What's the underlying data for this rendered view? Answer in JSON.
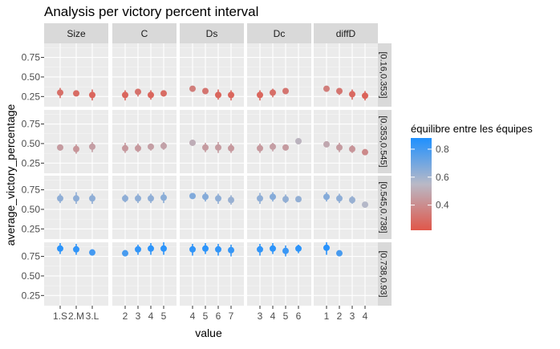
{
  "chart_data": {
    "type": "scatter",
    "title": "Analysis per victory percent interval",
    "xlabel": "value",
    "ylabel": "average_victory_percentage",
    "ylim": [
      0.12,
      0.93
    ],
    "y_ticks": [
      0.25,
      0.5,
      0.75
    ],
    "y_tick_labels": [
      "0.25",
      "0.50",
      "0.75"
    ],
    "grid": true,
    "columns": [
      {
        "label": "Size",
        "x": [
          "1.S",
          "2.M",
          "3.L"
        ]
      },
      {
        "label": "C",
        "x": [
          "2",
          "3",
          "4",
          "5"
        ]
      },
      {
        "label": "Ds",
        "x": [
          "4",
          "5",
          "6",
          "7"
        ]
      },
      {
        "label": "Dc",
        "x": [
          "3",
          "4",
          "5",
          "6"
        ]
      },
      {
        "label": "diffD",
        "x": [
          "1",
          "2",
          "3",
          "4"
        ]
      }
    ],
    "rows": [
      {
        "label": "[0.16,0.353]",
        "panels": [
          {
            "points": [
              {
                "x": "1.S",
                "y": 0.3,
                "lo": 0.23,
                "hi": 0.36
              },
              {
                "x": "2.M",
                "y": 0.29,
                "lo": 0.26,
                "hi": 0.32
              },
              {
                "x": "3.L",
                "y": 0.27,
                "lo": 0.2,
                "hi": 0.34
              }
            ]
          },
          {
            "points": [
              {
                "x": "2",
                "y": 0.27,
                "lo": 0.2,
                "hi": 0.33
              },
              {
                "x": "3",
                "y": 0.31,
                "lo": 0.25,
                "hi": 0.35
              },
              {
                "x": "4",
                "y": 0.27,
                "lo": 0.21,
                "hi": 0.33
              },
              {
                "x": "5",
                "y": 0.29,
                "lo": 0.25,
                "hi": 0.32
              }
            ]
          },
          {
            "points": [
              {
                "x": "4",
                "y": 0.35,
                "lo": 0.31,
                "hi": 0.38
              },
              {
                "x": "5",
                "y": 0.32,
                "lo": 0.28,
                "hi": 0.35
              },
              {
                "x": "6",
                "y": 0.27,
                "lo": 0.21,
                "hi": 0.34
              },
              {
                "x": "7",
                "y": 0.27,
                "lo": 0.2,
                "hi": 0.33
              }
            ]
          },
          {
            "points": [
              {
                "x": "3",
                "y": 0.27,
                "lo": 0.2,
                "hi": 0.33
              },
              {
                "x": "4",
                "y": 0.3,
                "lo": 0.24,
                "hi": 0.35
              },
              {
                "x": "5",
                "y": 0.32,
                "lo": 0.28,
                "hi": 0.35
              },
              {
                "x": "6",
                "y": null,
                "lo": null,
                "hi": null
              }
            ]
          },
          {
            "points": [
              {
                "x": "1",
                "y": 0.35,
                "lo": 0.32,
                "hi": 0.38
              },
              {
                "x": "2",
                "y": 0.32,
                "lo": 0.27,
                "hi": 0.35
              },
              {
                "x": "3",
                "y": 0.28,
                "lo": 0.21,
                "hi": 0.34
              },
              {
                "x": "4",
                "y": 0.26,
                "lo": 0.2,
                "hi": 0.32
              }
            ]
          }
        ]
      },
      {
        "label": "[0.353,0.545]",
        "panels": [
          {
            "points": [
              {
                "x": "1.S",
                "y": 0.45,
                "lo": 0.41,
                "hi": 0.49
              },
              {
                "x": "2.M",
                "y": 0.43,
                "lo": 0.37,
                "hi": 0.49
              },
              {
                "x": "3.L",
                "y": 0.46,
                "lo": 0.39,
                "hi": 0.52
              }
            ]
          },
          {
            "points": [
              {
                "x": "2",
                "y": 0.44,
                "lo": 0.38,
                "hi": 0.51
              },
              {
                "x": "3",
                "y": 0.44,
                "lo": 0.39,
                "hi": 0.5
              },
              {
                "x": "4",
                "y": 0.46,
                "lo": 0.41,
                "hi": 0.5
              },
              {
                "x": "5",
                "y": 0.47,
                "lo": 0.42,
                "hi": 0.52
              }
            ]
          },
          {
            "points": [
              {
                "x": "4",
                "y": 0.51,
                "lo": 0.48,
                "hi": 0.53
              },
              {
                "x": "5",
                "y": 0.45,
                "lo": 0.39,
                "hi": 0.51
              },
              {
                "x": "6",
                "y": 0.45,
                "lo": 0.38,
                "hi": 0.52
              },
              {
                "x": "7",
                "y": 0.44,
                "lo": 0.38,
                "hi": 0.5
              }
            ]
          },
          {
            "points": [
              {
                "x": "3",
                "y": 0.44,
                "lo": 0.38,
                "hi": 0.5
              },
              {
                "x": "4",
                "y": 0.46,
                "lo": 0.4,
                "hi": 0.51
              },
              {
                "x": "5",
                "y": 0.45,
                "lo": 0.42,
                "hi": 0.48
              },
              {
                "x": "6",
                "y": 0.53,
                "lo": 0.51,
                "hi": 0.55
              }
            ]
          },
          {
            "points": [
              {
                "x": "1",
                "y": 0.49,
                "lo": 0.46,
                "hi": 0.52
              },
              {
                "x": "2",
                "y": 0.45,
                "lo": 0.39,
                "hi": 0.51
              },
              {
                "x": "3",
                "y": 0.43,
                "lo": 0.38,
                "hi": 0.48
              },
              {
                "x": "4",
                "y": 0.39,
                "lo": 0.37,
                "hi": 0.42
              }
            ]
          }
        ]
      },
      {
        "label": "[0.545,0.738]",
        "panels": [
          {
            "points": [
              {
                "x": "1.S",
                "y": 0.64,
                "lo": 0.58,
                "hi": 0.7
              },
              {
                "x": "2.M",
                "y": 0.64,
                "lo": 0.57,
                "hi": 0.72
              },
              {
                "x": "3.L",
                "y": 0.64,
                "lo": 0.57,
                "hi": 0.7
              }
            ]
          },
          {
            "points": [
              {
                "x": "2",
                "y": 0.64,
                "lo": 0.59,
                "hi": 0.69
              },
              {
                "x": "3",
                "y": 0.64,
                "lo": 0.58,
                "hi": 0.7
              },
              {
                "x": "4",
                "y": 0.64,
                "lo": 0.58,
                "hi": 0.7
              },
              {
                "x": "5",
                "y": 0.65,
                "lo": 0.58,
                "hi": 0.72
              }
            ]
          },
          {
            "points": [
              {
                "x": "4",
                "y": 0.67,
                "lo": 0.64,
                "hi": 0.7
              },
              {
                "x": "5",
                "y": 0.66,
                "lo": 0.6,
                "hi": 0.72
              },
              {
                "x": "6",
                "y": 0.64,
                "lo": 0.57,
                "hi": 0.7
              },
              {
                "x": "7",
                "y": 0.62,
                "lo": 0.56,
                "hi": 0.68
              }
            ]
          },
          {
            "points": [
              {
                "x": "3",
                "y": 0.64,
                "lo": 0.57,
                "hi": 0.71
              },
              {
                "x": "4",
                "y": 0.66,
                "lo": 0.6,
                "hi": 0.72
              },
              {
                "x": "5",
                "y": 0.63,
                "lo": 0.58,
                "hi": 0.69
              },
              {
                "x": "6",
                "y": 0.63,
                "lo": 0.6,
                "hi": 0.67
              }
            ]
          },
          {
            "points": [
              {
                "x": "1",
                "y": 0.66,
                "lo": 0.6,
                "hi": 0.72
              },
              {
                "x": "2",
                "y": 0.64,
                "lo": 0.58,
                "hi": 0.7
              },
              {
                "x": "3",
                "y": 0.62,
                "lo": 0.57,
                "hi": 0.67
              },
              {
                "x": "4",
                "y": 0.56,
                "lo": 0.54,
                "hi": 0.58
              }
            ]
          }
        ]
      },
      {
        "label": "[0.738,0.93]",
        "panels": [
          {
            "points": [
              {
                "x": "1.S",
                "y": 0.85,
                "lo": 0.78,
                "hi": 0.92
              },
              {
                "x": "2.M",
                "y": 0.84,
                "lo": 0.77,
                "hi": 0.91
              },
              {
                "x": "3.L",
                "y": 0.8,
                "lo": 0.76,
                "hi": 0.84
              }
            ]
          },
          {
            "points": [
              {
                "x": "2",
                "y": 0.79,
                "lo": 0.75,
                "hi": 0.83
              },
              {
                "x": "3",
                "y": 0.84,
                "lo": 0.77,
                "hi": 0.9
              },
              {
                "x": "4",
                "y": 0.85,
                "lo": 0.77,
                "hi": 0.92
              },
              {
                "x": "5",
                "y": 0.85,
                "lo": 0.77,
                "hi": 0.93
              }
            ]
          },
          {
            "points": [
              {
                "x": "4",
                "y": 0.84,
                "lo": 0.76,
                "hi": 0.91
              },
              {
                "x": "5",
                "y": 0.85,
                "lo": 0.78,
                "hi": 0.92
              },
              {
                "x": "6",
                "y": 0.84,
                "lo": 0.76,
                "hi": 0.91
              },
              {
                "x": "7",
                "y": 0.83,
                "lo": 0.75,
                "hi": 0.9
              }
            ]
          },
          {
            "points": [
              {
                "x": "3",
                "y": 0.84,
                "lo": 0.76,
                "hi": 0.91
              },
              {
                "x": "4",
                "y": 0.85,
                "lo": 0.78,
                "hi": 0.92
              },
              {
                "x": "5",
                "y": 0.82,
                "lo": 0.75,
                "hi": 0.89
              },
              {
                "x": "6",
                "y": 0.85,
                "lo": 0.79,
                "hi": 0.9
              }
            ]
          },
          {
            "points": [
              {
                "x": "1",
                "y": 0.86,
                "lo": 0.77,
                "hi": 0.93
              },
              {
                "x": "2",
                "y": 0.79,
                "lo": 0.76,
                "hi": 0.82
              },
              {
                "x": "3",
                "y": null,
                "lo": null,
                "hi": null
              },
              {
                "x": "4",
                "y": null,
                "lo": null,
                "hi": null
              }
            ]
          }
        ]
      }
    ],
    "legend": {
      "title": "équilibre entre les équipes",
      "position": "right",
      "tick_labels": [
        "0.4",
        "0.6",
        "0.8"
      ],
      "tick_values": [
        0.4,
        0.6,
        0.8
      ],
      "range": [
        0.22,
        0.88
      ],
      "color_low": "#E0574A",
      "color_mid": "#B9B9C6",
      "color_high": "#1E90FF"
    }
  }
}
